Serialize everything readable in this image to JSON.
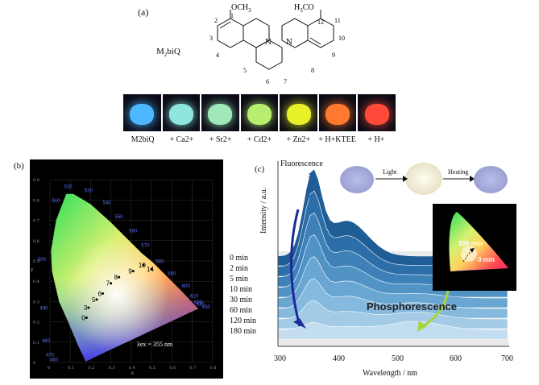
{
  "panel_a": {
    "label": "(a)",
    "compound_name": "M",
    "compound_sub": "2",
    "compound_tail": "biQ",
    "substituent_left": "OCH",
    "substituent_left_sub": "3",
    "substituent_right": "H",
    "substituent_right_sub": "3",
    "substituent_right_tail": "CO",
    "atom_numbers": [
      "2",
      "1",
      "12",
      "11",
      "3",
      "10",
      "4",
      "9",
      "5",
      "6",
      "7",
      "8"
    ],
    "ring_atom": "N",
    "vials": [
      {
        "label": "M2biQ",
        "color": "#4db8ff"
      },
      {
        "label": "+ Ca2+",
        "color": "#8fe6e0"
      },
      {
        "label": "+ Sr2+",
        "color": "#9fe8b8"
      },
      {
        "label": "+ Cd2+",
        "color": "#b8ee70"
      },
      {
        "label": "+ Zn2+",
        "color": "#e8f028"
      },
      {
        "label": "+ H+KTEE",
        "color": "#ff7a2e"
      },
      {
        "label": "+ H+",
        "color": "#ff4a3a"
      }
    ]
  },
  "panel_b": {
    "label": "(b)",
    "lambda_text": "λex = 355 nm",
    "wavelength_ticks": [
      "520",
      "510",
      "530",
      "540",
      "550",
      "560",
      "570",
      "500",
      "580",
      "590",
      "600",
      "610",
      "620",
      "630",
      "650",
      "490",
      "480",
      "470",
      "460"
    ],
    "axis_x_ticks": [
      "0",
      "0.1",
      "0.2",
      "0.3",
      "0.4",
      "0.5",
      "0.6",
      "0.7",
      "0.8"
    ],
    "axis_y_ticks": [
      "0",
      "0.1",
      "0.2",
      "0.3",
      "0.4",
      "0.5",
      "0.6",
      "0.7",
      "0.8",
      "0.9"
    ],
    "axis_x_label": "x",
    "axis_y_label": "y",
    "points": [
      {
        "label": "0",
        "x": 0.18,
        "y": 0.22
      },
      {
        "label": "3",
        "x": 0.19,
        "y": 0.27
      },
      {
        "label": "5",
        "x": 0.23,
        "y": 0.31
      },
      {
        "label": "6",
        "x": 0.26,
        "y": 0.34
      },
      {
        "label": "7",
        "x": 0.3,
        "y": 0.39
      },
      {
        "label": "8",
        "x": 0.34,
        "y": 0.42
      },
      {
        "label": "9",
        "x": 0.41,
        "y": 0.45
      },
      {
        "label": "10",
        "x": 0.46,
        "y": 0.48
      },
      {
        "label": "14",
        "x": 0.5,
        "y": 0.46
      }
    ]
  },
  "panel_c": {
    "label": "(c)",
    "fluorescence_label": "Fluorescence",
    "phosphorescence_label": "Phosphorescence",
    "light_label": "Light",
    "heating_label": "Heating",
    "y_axis_label": "Intensity / a.u.",
    "x_axis_label": "Wavelength / nm",
    "x_ticks": [
      "300",
      "400",
      "500",
      "600",
      "700"
    ],
    "series": [
      "0 min",
      "2 min",
      "5 min",
      "10 min",
      "30 min",
      "60 min",
      "120 min",
      "180 min"
    ],
    "inset_180": "180 min",
    "inset_0": "0 min"
  }
}
